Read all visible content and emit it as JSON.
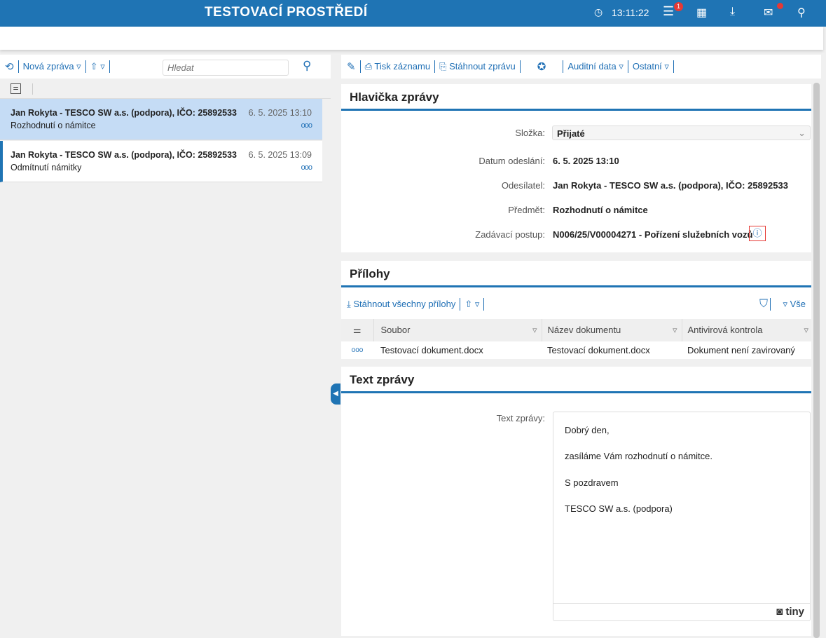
{
  "header": {
    "title": "TESTOVACÍ PROSTŘEDÍ",
    "time": "13:11:22",
    "notifications_count": "1",
    "accent": "#1f74b4"
  },
  "left": {
    "new_message": "Nová zpráva",
    "search_placeholder": "Hledat",
    "messages": [
      {
        "sender": "Jan Rokyta - TESCO SW a.s. (podpora)",
        "ico": ", IČO: 25892533",
        "date": "6. 5. 2025 13:10",
        "subject": "Rozhodnutí o námitce",
        "selected": true
      },
      {
        "sender": "Jan Rokyta - TESCO SW a.s. (podpora)",
        "ico": ", IČO: 25892533",
        "date": "6. 5. 2025 13:09",
        "subject": "Odmítnutí námitky",
        "selected": false
      }
    ]
  },
  "toolbar": {
    "print": "Tisk záznamu",
    "download": "Stáhnout zprávu",
    "audit": "Auditní data",
    "other": "Ostatní"
  },
  "header_section": {
    "title": "Hlavička zprávy",
    "folder_label": "Složka:",
    "folder_value": "Přijaté",
    "sent_label": "Datum odeslání:",
    "sent_value": "6. 5. 2025 13:10",
    "sender_label": "Odesílatel:",
    "sender_value": "Jan Rokyta - TESCO SW a.s. (podpora), IČO: 25892533",
    "subject_label": "Předmět:",
    "subject_value": "Rozhodnutí o námitce",
    "procedure_label": "Zadávací postup:",
    "procedure_value": "N006/25/V00004271 - Pořízení služebních vozů"
  },
  "attachments": {
    "title": "Přílohy",
    "download_all": "Stáhnout všechny přílohy",
    "filter_all": "Vše",
    "columns": [
      "Soubor",
      "Název dokumentu",
      "Antivirová kontrola"
    ],
    "rows": [
      [
        "Testovací dokument.docx",
        "Testovací dokument.docx",
        "Dokument není zavirovaný"
      ]
    ]
  },
  "body": {
    "title": "Text zprávy",
    "label": "Text zprávy:",
    "lines": [
      "Dobrý den,",
      "zasíláme Vám rozhodnutí o námitce.",
      "S pozdravem",
      "TESCO SW a.s. (podpora)"
    ],
    "editor_brand": "tiny"
  }
}
